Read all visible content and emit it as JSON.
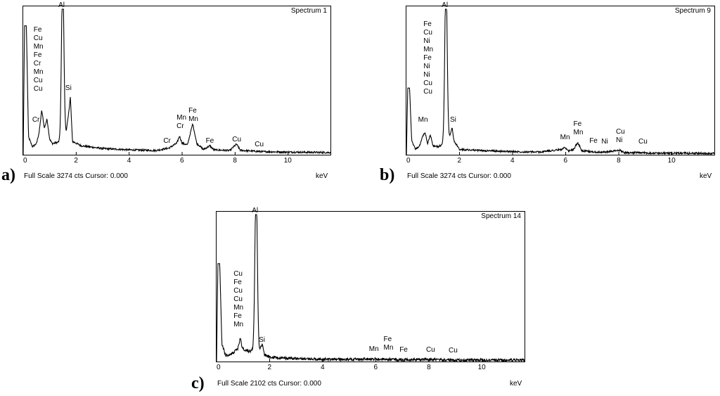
{
  "footer_label": "Full Scale",
  "cursor_label": "Cursor:",
  "chart_data": [
    {
      "type": "line",
      "panel_label": "a)",
      "title": "Spectrum 1",
      "xlabel": "keV",
      "full_scale": "3274 cts",
      "cursor_value": "0.000",
      "xlim": [
        0,
        11.6
      ],
      "ylim": [
        0,
        3274
      ],
      "x_ticks": [
        0,
        2,
        4,
        6,
        8,
        10
      ],
      "background": [
        [
          0,
          0
        ],
        [
          0.05,
          2900
        ],
        [
          0.12,
          2900
        ],
        [
          0.2,
          400
        ],
        [
          0.35,
          180
        ],
        [
          0.5,
          250
        ],
        [
          0.6,
          500
        ],
        [
          0.7,
          1000
        ],
        [
          0.8,
          600
        ],
        [
          0.9,
          800
        ],
        [
          1.0,
          350
        ],
        [
          1.1,
          250
        ],
        [
          1.3,
          280
        ],
        [
          1.45,
          300
        ],
        [
          1.62,
          500
        ],
        [
          1.7,
          850
        ],
        [
          1.78,
          1300
        ],
        [
          1.86,
          300
        ],
        [
          2.2,
          200
        ],
        [
          3.0,
          140
        ],
        [
          4.0,
          110
        ],
        [
          5.0,
          95
        ],
        [
          5.5,
          150
        ],
        [
          5.8,
          260
        ],
        [
          5.9,
          420
        ],
        [
          6.0,
          260
        ],
        [
          6.2,
          220
        ],
        [
          6.4,
          700
        ],
        [
          6.55,
          260
        ],
        [
          6.8,
          120
        ],
        [
          7.05,
          200
        ],
        [
          7.2,
          110
        ],
        [
          7.8,
          95
        ],
        [
          8.05,
          240
        ],
        [
          8.2,
          100
        ],
        [
          9.0,
          70
        ],
        [
          10,
          60
        ],
        [
          11.6,
          50
        ]
      ],
      "peaks": [
        {
          "element": "Al",
          "center": 1.49,
          "height": 3700,
          "width": 0.045
        }
      ],
      "peak_labels": [
        {
          "x": 0.55,
          "y": 2720,
          "lines": [
            "Fe",
            "Cu",
            "Mn",
            "Fe",
            "Cr",
            "Mn",
            "Cu",
            "Cu"
          ],
          "step": 12
        },
        {
          "x": 0.5,
          "y": 700,
          "lines": [
            "Cr"
          ],
          "step": 12
        },
        {
          "x": 1.49,
          "y": 3270,
          "lines": [
            "Al"
          ],
          "step": 12
        },
        {
          "x": 1.75,
          "y": 1400,
          "lines": [
            "Si"
          ],
          "step": 12
        },
        {
          "x": 5.45,
          "y": 220,
          "lines": [
            "Cr"
          ],
          "step": 12
        },
        {
          "x": 5.95,
          "y": 740,
          "lines": [
            "Mn",
            "Cr"
          ],
          "step": 12
        },
        {
          "x": 6.4,
          "y": 900,
          "lines": [
            "Fe",
            "Mn"
          ],
          "step": 12
        },
        {
          "x": 7.05,
          "y": 220,
          "lines": [
            "Fe"
          ],
          "step": 12
        },
        {
          "x": 8.05,
          "y": 250,
          "lines": [
            "Cu"
          ],
          "step": 12
        },
        {
          "x": 8.9,
          "y": 150,
          "lines": [
            "Cu"
          ],
          "step": 12
        }
      ]
    },
    {
      "type": "line",
      "panel_label": "b)",
      "title": "Spectrum 9",
      "xlabel": "keV",
      "full_scale": "3274 cts",
      "cursor_value": "0.000",
      "xlim": [
        0,
        11.6
      ],
      "ylim": [
        0,
        3274
      ],
      "x_ticks": [
        0,
        2,
        4,
        6,
        8,
        10
      ],
      "background": [
        [
          0,
          0
        ],
        [
          0.05,
          1500
        ],
        [
          0.12,
          1500
        ],
        [
          0.2,
          300
        ],
        [
          0.35,
          120
        ],
        [
          0.5,
          200
        ],
        [
          0.6,
          400
        ],
        [
          0.7,
          500
        ],
        [
          0.8,
          250
        ],
        [
          0.9,
          450
        ],
        [
          1.0,
          200
        ],
        [
          1.2,
          180
        ],
        [
          1.45,
          250
        ],
        [
          1.62,
          400
        ],
        [
          1.72,
          600
        ],
        [
          1.8,
          300
        ],
        [
          2.0,
          120
        ],
        [
          3.0,
          90
        ],
        [
          4.0,
          70
        ],
        [
          5.0,
          60
        ],
        [
          5.85,
          120
        ],
        [
          5.95,
          160
        ],
        [
          6.1,
          80
        ],
        [
          6.3,
          120
        ],
        [
          6.45,
          280
        ],
        [
          6.6,
          90
        ],
        [
          7.1,
          60
        ],
        [
          7.5,
          60
        ],
        [
          8.05,
          100
        ],
        [
          8.2,
          50
        ],
        [
          9.0,
          40
        ],
        [
          10,
          35
        ],
        [
          11.6,
          30
        ]
      ],
      "peaks": [
        {
          "element": "Al",
          "center": 1.49,
          "height": 3700,
          "width": 0.045
        }
      ],
      "peak_labels": [
        {
          "x": 0.8,
          "y": 2850,
          "lines": [
            "Fe",
            "Cu",
            "Ni",
            "Mn",
            "Fe",
            "Ni",
            "Ni",
            "Cu",
            "Cu"
          ],
          "step": 12
        },
        {
          "x": 0.6,
          "y": 700,
          "lines": [
            "Mn"
          ],
          "step": 12
        },
        {
          "x": 1.49,
          "y": 3270,
          "lines": [
            "Al"
          ],
          "step": 12
        },
        {
          "x": 1.8,
          "y": 700,
          "lines": [
            "Si"
          ],
          "step": 12
        },
        {
          "x": 5.95,
          "y": 300,
          "lines": [
            "Mn"
          ],
          "step": 12
        },
        {
          "x": 6.45,
          "y": 600,
          "lines": [
            "Fe",
            "Mn"
          ],
          "step": 12
        },
        {
          "x": 7.05,
          "y": 220,
          "lines": [
            "Fe"
          ],
          "step": 12
        },
        {
          "x": 7.5,
          "y": 200,
          "lines": [
            "Ni"
          ],
          "step": 12
        },
        {
          "x": 8.05,
          "y": 420,
          "lines": [
            "Cu",
            "Ni"
          ],
          "step": 12
        },
        {
          "x": 8.9,
          "y": 200,
          "lines": [
            "Cu"
          ],
          "step": 12
        }
      ]
    },
    {
      "type": "line",
      "panel_label": "c)",
      "title": "Spectrum 14",
      "xlabel": "keV",
      "full_scale": "2102 cts",
      "cursor_value": "0.000",
      "xlim": [
        0,
        11.6
      ],
      "ylim": [
        0,
        2102
      ],
      "x_ticks": [
        0,
        2,
        4,
        6,
        8,
        10
      ],
      "background": [
        [
          0,
          0
        ],
        [
          0.05,
          1400
        ],
        [
          0.12,
          1400
        ],
        [
          0.2,
          250
        ],
        [
          0.35,
          80
        ],
        [
          0.5,
          100
        ],
        [
          0.6,
          120
        ],
        [
          0.7,
          150
        ],
        [
          0.8,
          180
        ],
        [
          0.9,
          350
        ],
        [
          0.95,
          200
        ],
        [
          1.1,
          150
        ],
        [
          1.3,
          150
        ],
        [
          1.45,
          200
        ],
        [
          1.6,
          150
        ],
        [
          1.72,
          250
        ],
        [
          1.8,
          100
        ],
        [
          2.0,
          60
        ],
        [
          3.0,
          40
        ],
        [
          4.0,
          30
        ],
        [
          5.0,
          30
        ],
        [
          6.0,
          35
        ],
        [
          7.0,
          25
        ],
        [
          8.0,
          30
        ],
        [
          9.0,
          20
        ],
        [
          10,
          20
        ],
        [
          11.6,
          20
        ]
      ],
      "peaks": [
        {
          "element": "Al",
          "center": 1.49,
          "height": 2350,
          "width": 0.045
        }
      ],
      "peak_labels": [
        {
          "x": 0.8,
          "y": 1200,
          "lines": [
            "Cu",
            "Fe",
            "Cu",
            "Cu",
            "Mn",
            "Fe",
            "Mn"
          ],
          "step": 12
        },
        {
          "x": 1.49,
          "y": 2100,
          "lines": [
            "Al"
          ],
          "step": 12
        },
        {
          "x": 1.75,
          "y": 250,
          "lines": [
            "Si"
          ],
          "step": 12
        },
        {
          "x": 5.9,
          "y": 120,
          "lines": [
            "Mn"
          ],
          "step": 12
        },
        {
          "x": 6.45,
          "y": 260,
          "lines": [
            "Fe",
            "Mn"
          ],
          "step": 12
        },
        {
          "x": 7.05,
          "y": 110,
          "lines": [
            "Fe"
          ],
          "step": 12
        },
        {
          "x": 8.05,
          "y": 110,
          "lines": [
            "Cu"
          ],
          "step": 12
        },
        {
          "x": 8.9,
          "y": 100,
          "lines": [
            "Cu"
          ],
          "step": 12
        }
      ]
    }
  ]
}
